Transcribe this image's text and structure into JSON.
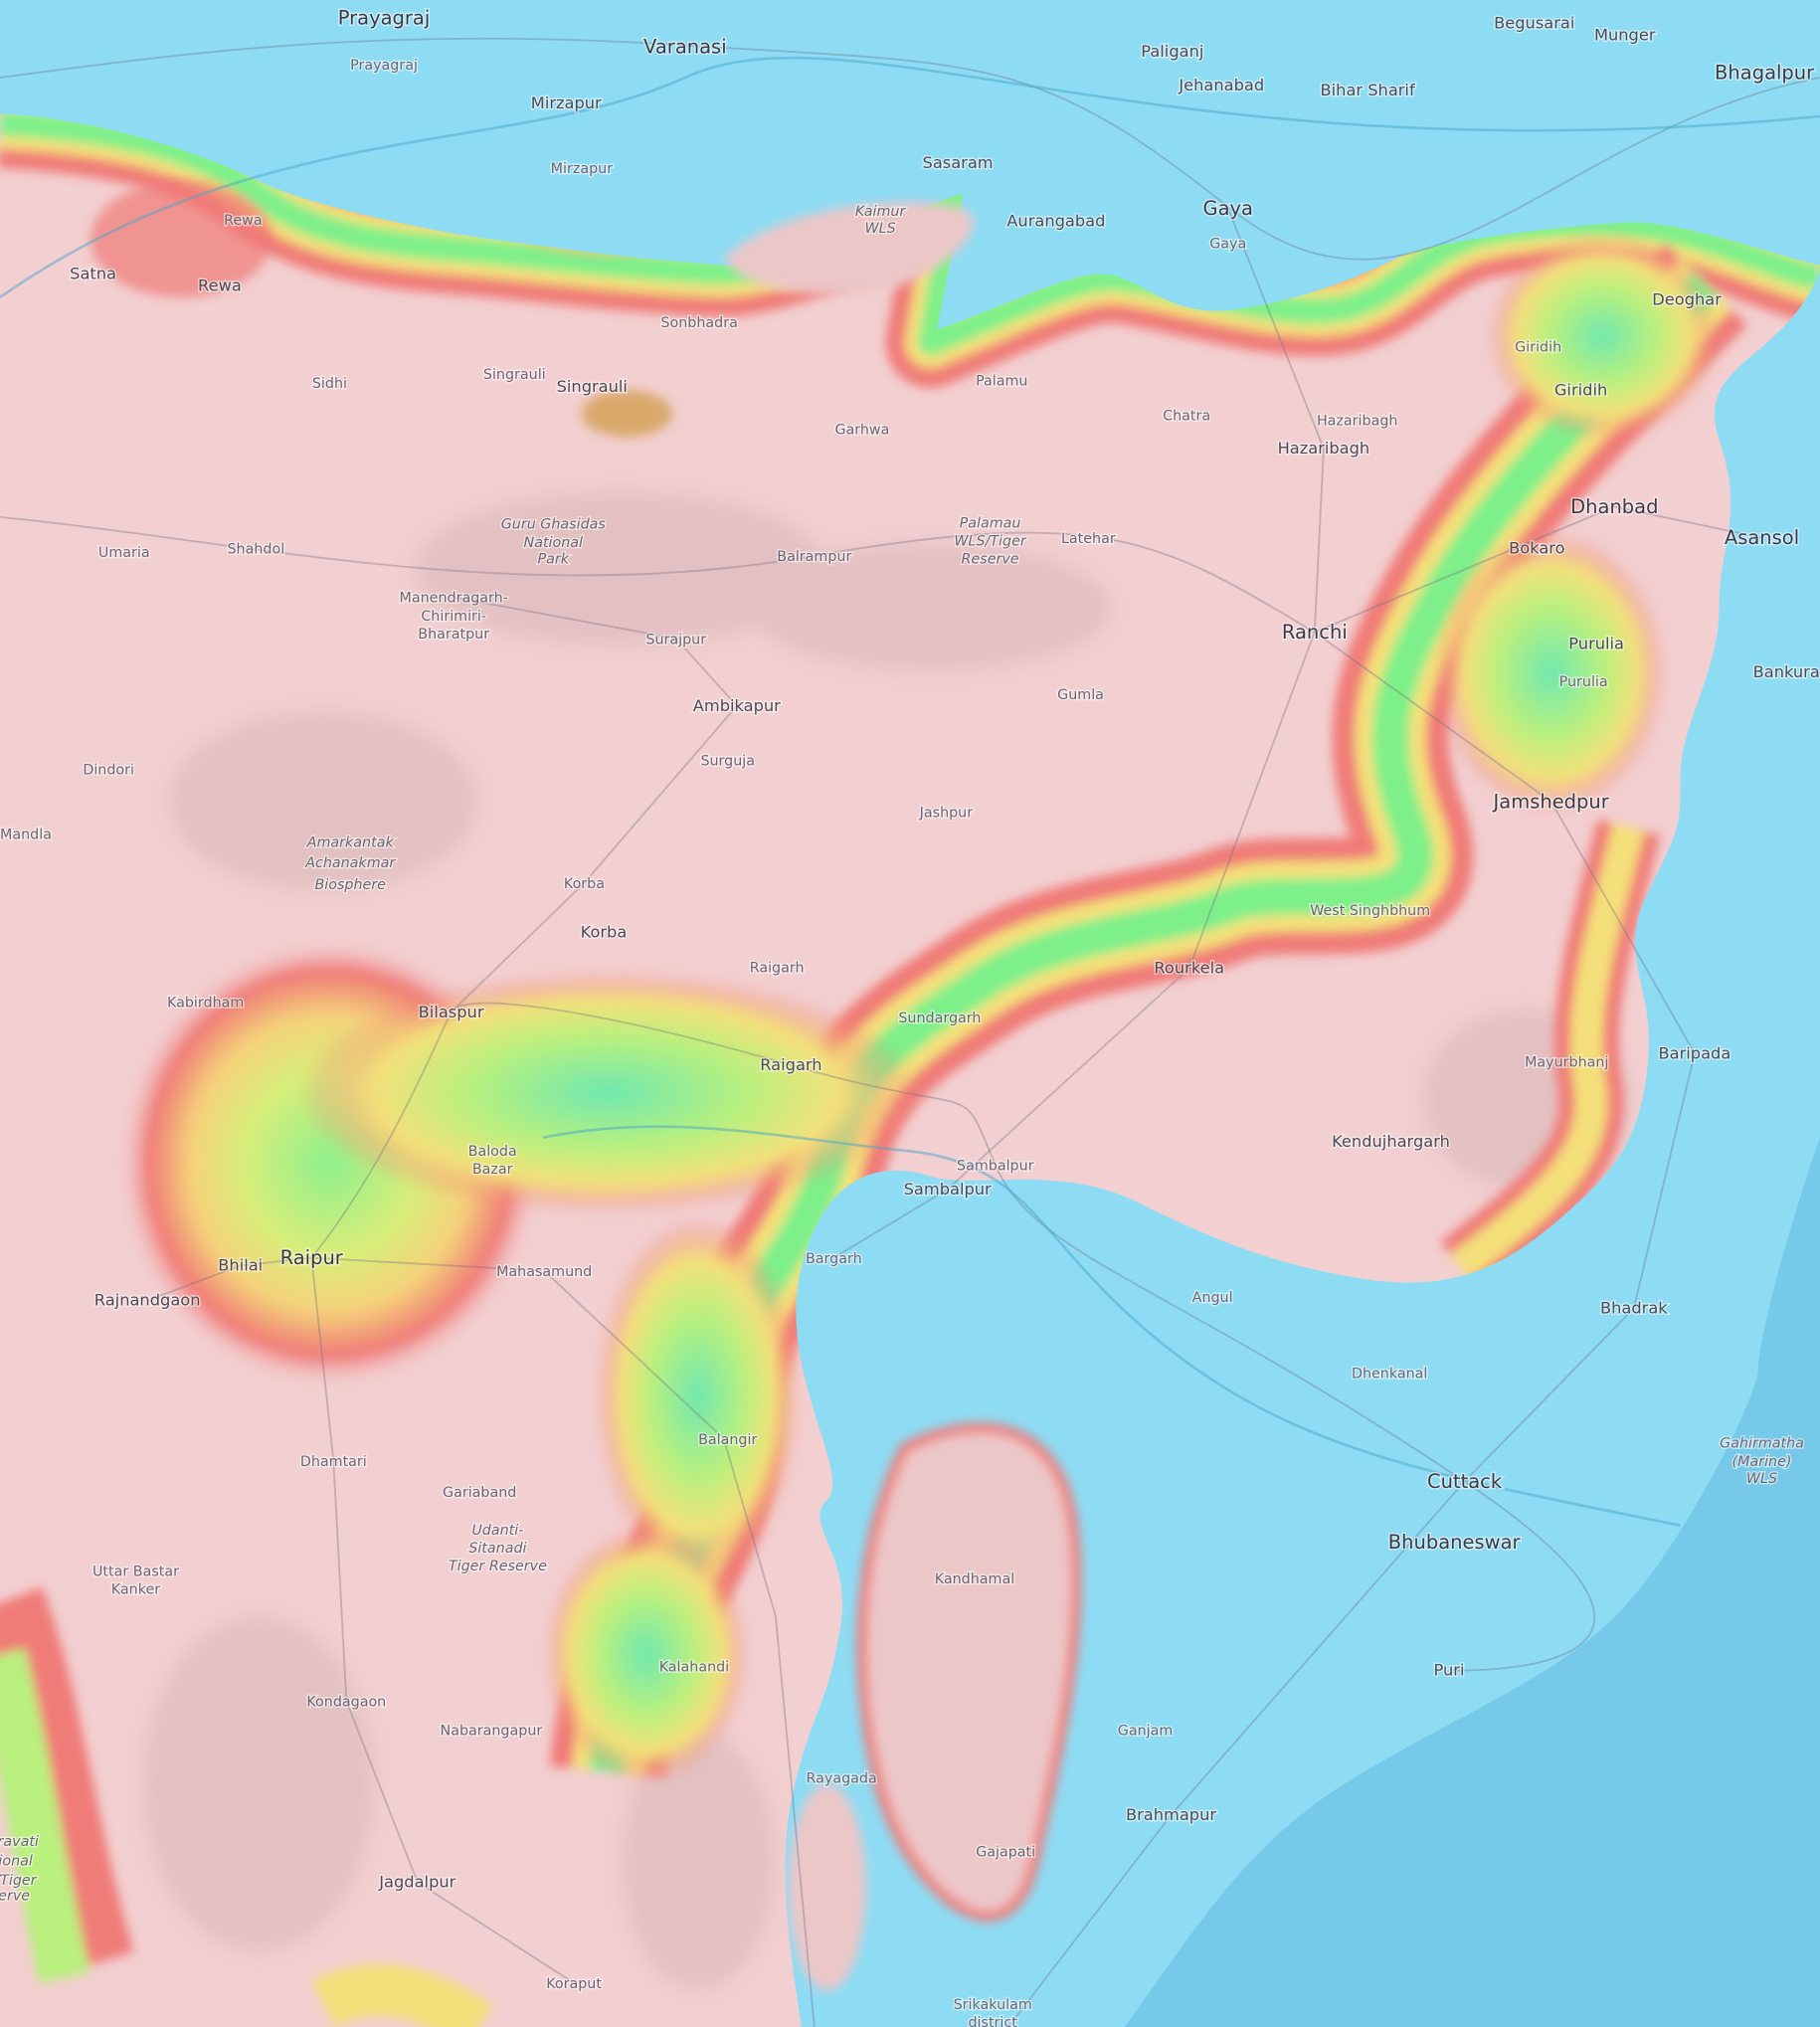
{
  "map": {
    "colors": {
      "lowland": "#8ddcf4",
      "sea": "#76c9e8",
      "highland": "#f2cfd0",
      "band_green": "#7ef08a",
      "band_yellow": "#f4ea7a",
      "band_red": "#f07b78",
      "road": "#6b6b80"
    },
    "labels": [
      {
        "text": "Prayagraj",
        "kind": "major"
      },
      {
        "text": "Prayagraj",
        "kind": "minor"
      },
      {
        "text": "Varanasi",
        "kind": "major"
      },
      {
        "text": "Mirzapur",
        "kind": "city"
      },
      {
        "text": "Paliganj",
        "kind": "city"
      },
      {
        "text": "Jehanabad",
        "kind": "city"
      },
      {
        "text": "Bihar Sharif",
        "kind": "city"
      },
      {
        "text": "Begusarai",
        "kind": "city"
      },
      {
        "text": "Munger",
        "kind": "city"
      },
      {
        "text": "Bhagalpur",
        "kind": "major"
      },
      {
        "text": "Sasaram",
        "kind": "city"
      },
      {
        "text": "Mirzapur",
        "kind": "minor"
      },
      {
        "text": "Kaimur",
        "kind": "park"
      },
      {
        "text": "WLS",
        "kind": "park"
      },
      {
        "text": "Aurangabad",
        "kind": "city"
      },
      {
        "text": "Gaya",
        "kind": "major"
      },
      {
        "text": "Gaya",
        "kind": "minor"
      },
      {
        "text": "Rewa",
        "kind": "minor"
      },
      {
        "text": "Satna",
        "kind": "city"
      },
      {
        "text": "Rewa",
        "kind": "city"
      },
      {
        "text": "Sonbhadra",
        "kind": "minor"
      },
      {
        "text": "Singrauli",
        "kind": "minor"
      },
      {
        "text": "Singrauli",
        "kind": "city"
      },
      {
        "text": "Sidhi",
        "kind": "minor"
      },
      {
        "text": "Palamu",
        "kind": "minor"
      },
      {
        "text": "Garhwa",
        "kind": "minor"
      },
      {
        "text": "Deoghar",
        "kind": "city"
      },
      {
        "text": "Giridih",
        "kind": "minor"
      },
      {
        "text": "Giridih",
        "kind": "city"
      },
      {
        "text": "Chatra",
        "kind": "minor"
      },
      {
        "text": "Hazaribagh",
        "kind": "minor"
      },
      {
        "text": "Hazaribagh",
        "kind": "city"
      },
      {
        "text": "Dhanbad",
        "kind": "major"
      },
      {
        "text": "Asansol",
        "kind": "major"
      },
      {
        "text": "Bokaro",
        "kind": "city"
      },
      {
        "text": "Guru Ghasidas",
        "kind": "park"
      },
      {
        "text": "National",
        "kind": "park"
      },
      {
        "text": "Park",
        "kind": "park"
      },
      {
        "text": "Palamau",
        "kind": "park"
      },
      {
        "text": "WLS/Tiger",
        "kind": "park"
      },
      {
        "text": "Reserve",
        "kind": "park"
      },
      {
        "text": "Latehar",
        "kind": "minor"
      },
      {
        "text": "Balrampur",
        "kind": "minor"
      },
      {
        "text": "Umaria",
        "kind": "minor"
      },
      {
        "text": "Shahdol",
        "kind": "minor"
      },
      {
        "text": "Manendragarh-",
        "kind": "minor"
      },
      {
        "text": "Chirimiri-",
        "kind": "minor"
      },
      {
        "text": "Bharatpur",
        "kind": "minor"
      },
      {
        "text": "Surajpur",
        "kind": "minor"
      },
      {
        "text": "Ranchi",
        "kind": "major"
      },
      {
        "text": "Purulia",
        "kind": "city"
      },
      {
        "text": "Purulia",
        "kind": "minor"
      },
      {
        "text": "Bankura",
        "kind": "city"
      },
      {
        "text": "Ambikapur",
        "kind": "city"
      },
      {
        "text": "Gumla",
        "kind": "minor"
      },
      {
        "text": "Dindori",
        "kind": "minor"
      },
      {
        "text": "Surguja",
        "kind": "minor"
      },
      {
        "text": "Jashpur",
        "kind": "minor"
      },
      {
        "text": "Jamshedpur",
        "kind": "major"
      },
      {
        "text": "Mandla",
        "kind": "minor"
      },
      {
        "text": "Amarkantak",
        "kind": "park"
      },
      {
        "text": "Achanakmar",
        "kind": "park"
      },
      {
        "text": "Biosphere",
        "kind": "park"
      },
      {
        "text": "Korba",
        "kind": "minor"
      },
      {
        "text": "Korba",
        "kind": "city"
      },
      {
        "text": "West Singhbhum",
        "kind": "minor"
      },
      {
        "text": "Rourkela",
        "kind": "city"
      },
      {
        "text": "Raigarh",
        "kind": "minor"
      },
      {
        "text": "Kabirdham",
        "kind": "minor"
      },
      {
        "text": "Bilaspur",
        "kind": "city"
      },
      {
        "text": "Sundargarh",
        "kind": "minor"
      },
      {
        "text": "Raigarh",
        "kind": "city"
      },
      {
        "text": "Mayurbhanj",
        "kind": "minor"
      },
      {
        "text": "Baripada",
        "kind": "city"
      },
      {
        "text": "Kendujhargarh",
        "kind": "city"
      },
      {
        "text": "Baloda",
        "kind": "minor"
      },
      {
        "text": "Bazar",
        "kind": "minor"
      },
      {
        "text": "Sambalpur",
        "kind": "minor"
      },
      {
        "text": "Sambalpur",
        "kind": "city"
      },
      {
        "text": "Bargarh",
        "kind": "minor"
      },
      {
        "text": "Bhilai",
        "kind": "city"
      },
      {
        "text": "Raipur",
        "kind": "major"
      },
      {
        "text": "Rajnandgaon",
        "kind": "city"
      },
      {
        "text": "Mahasamund",
        "kind": "minor"
      },
      {
        "text": "Angul",
        "kind": "minor"
      },
      {
        "text": "Bhadrak",
        "kind": "city"
      },
      {
        "text": "Dhenkanal",
        "kind": "minor"
      },
      {
        "text": "Balangir",
        "kind": "minor"
      },
      {
        "text": "Gahirmatha",
        "kind": "park"
      },
      {
        "text": "(Marine)",
        "kind": "park"
      },
      {
        "text": "WLS",
        "kind": "park"
      },
      {
        "text": "Dhamtari",
        "kind": "minor"
      },
      {
        "text": "Cuttack",
        "kind": "major"
      },
      {
        "text": "Gariaband",
        "kind": "minor"
      },
      {
        "text": "Udanti-",
        "kind": "park"
      },
      {
        "text": "Sitanadi",
        "kind": "park"
      },
      {
        "text": "Tiger Reserve",
        "kind": "park"
      },
      {
        "text": "Bhubaneswar",
        "kind": "major"
      },
      {
        "text": "Uttar Bastar",
        "kind": "minor"
      },
      {
        "text": "Kanker",
        "kind": "minor"
      },
      {
        "text": "Kandhamal",
        "kind": "minor"
      },
      {
        "text": "Kalahandi",
        "kind": "minor"
      },
      {
        "text": "Puri",
        "kind": "city"
      },
      {
        "text": "Kondagaon",
        "kind": "minor"
      },
      {
        "text": "Nabarangapur",
        "kind": "minor"
      },
      {
        "text": "Ganjam",
        "kind": "minor"
      },
      {
        "text": "Rayagada",
        "kind": "minor"
      },
      {
        "text": "Brahmapur",
        "kind": "city"
      },
      {
        "text": "Gajapati",
        "kind": "minor"
      },
      {
        "text": "Jagdalpur",
        "kind": "city"
      },
      {
        "text": "Koraput",
        "kind": "minor"
      },
      {
        "text": "Srikakulam",
        "kind": "minor"
      },
      {
        "text": "district",
        "kind": "minor"
      },
      {
        "text": "ravati",
        "kind": "park"
      },
      {
        "text": "ional",
        "kind": "park"
      },
      {
        "text": "r/Tiger",
        "kind": "park"
      },
      {
        "text": "serve",
        "kind": "park"
      }
    ]
  }
}
